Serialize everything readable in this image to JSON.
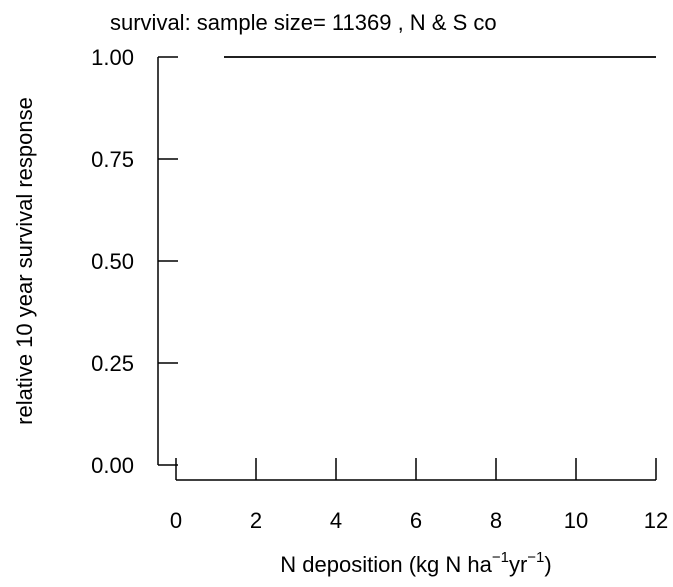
{
  "chart_data": {
    "type": "line",
    "title": "survival: sample size= 11369 , N & S co",
    "x_label": [
      "N deposition (kg N ha",
      "−1",
      "yr",
      "−1",
      ")"
    ],
    "y_label": "relative 10 year survival response",
    "x": [
      1.2,
      12
    ],
    "series": [
      {
        "color": "#000000",
        "values": [
          1,
          1
        ]
      }
    ],
    "xlim": [
      0,
      12
    ],
    "xticks": [
      0,
      2,
      4,
      6,
      8,
      10,
      12
    ],
    "ylim": [
      0,
      1
    ],
    "yticks": [
      {
        "value": 0,
        "label": "0.00"
      },
      {
        "value": 0.25,
        "label": "0.25"
      },
      {
        "value": 0.5,
        "label": "0.50"
      },
      {
        "value": 0.75,
        "label": "0.75"
      },
      {
        "value": 1,
        "label": "1.00"
      }
    ]
  }
}
